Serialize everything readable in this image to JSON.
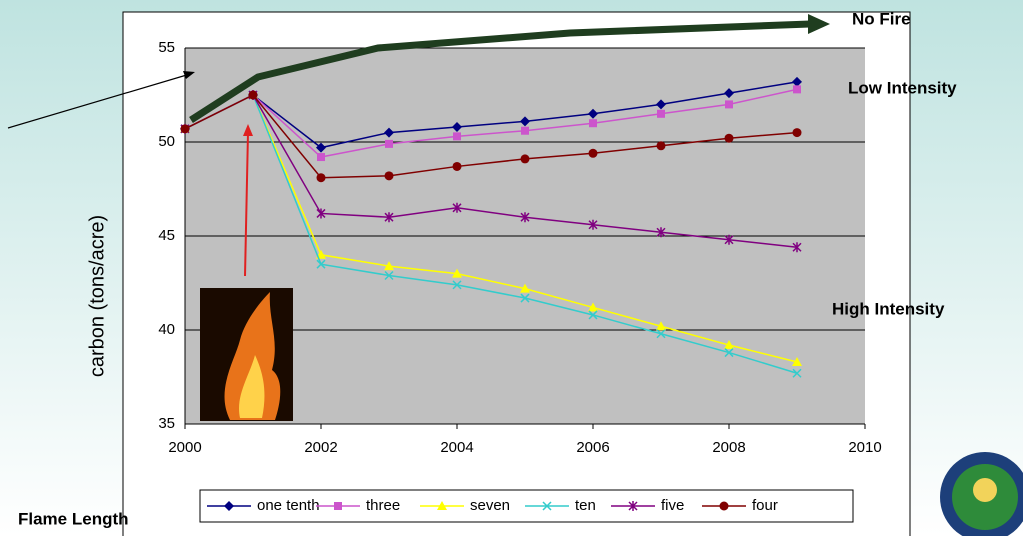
{
  "chart_data": {
    "type": "line",
    "y_label": "carbon (tons/acre)",
    "x": [
      2000,
      2001,
      2002,
      2003,
      2004,
      2005,
      2006,
      2007,
      2008,
      2009
    ],
    "xlim": [
      2000,
      2010
    ],
    "xticks": [
      2000,
      2002,
      2004,
      2006,
      2008,
      2010
    ],
    "ylim": [
      35,
      55
    ],
    "yticks": [
      35,
      40,
      45,
      50,
      55
    ],
    "grid": true,
    "legend": "bottom",
    "annotations": [
      "No Fire",
      "Low Intensity",
      "High Intensity",
      "Flame Length"
    ],
    "series": [
      {
        "name": "one tenth",
        "color": "#000080",
        "marker": "diamond",
        "values": [
          50.7,
          52.5,
          49.7,
          50.5,
          50.8,
          51.1,
          51.5,
          52.0,
          52.6,
          53.2
        ]
      },
      {
        "name": "three",
        "color": "#cc55cc",
        "marker": "square",
        "values": [
          50.7,
          52.5,
          49.2,
          49.9,
          50.3,
          50.6,
          51.0,
          51.5,
          52.0,
          52.8
        ]
      },
      {
        "name": "seven",
        "color": "#ffff00",
        "marker": "triangle",
        "values": [
          50.7,
          52.5,
          44.0,
          43.4,
          43.0,
          42.2,
          41.2,
          40.2,
          39.2,
          38.3
        ]
      },
      {
        "name": "ten",
        "color": "#33cccc",
        "marker": "x",
        "values": [
          50.7,
          52.5,
          43.5,
          42.9,
          42.4,
          41.7,
          40.8,
          39.8,
          38.8,
          37.7
        ]
      },
      {
        "name": "five",
        "color": "#800080",
        "marker": "star",
        "values": [
          50.7,
          52.5,
          46.2,
          46.0,
          46.5,
          46.0,
          45.6,
          45.2,
          44.8,
          44.4
        ]
      },
      {
        "name": "four",
        "color": "#800000",
        "marker": "circle",
        "values": [
          50.7,
          52.5,
          48.1,
          48.2,
          48.7,
          49.1,
          49.4,
          49.8,
          50.2,
          50.5
        ]
      }
    ]
  }
}
